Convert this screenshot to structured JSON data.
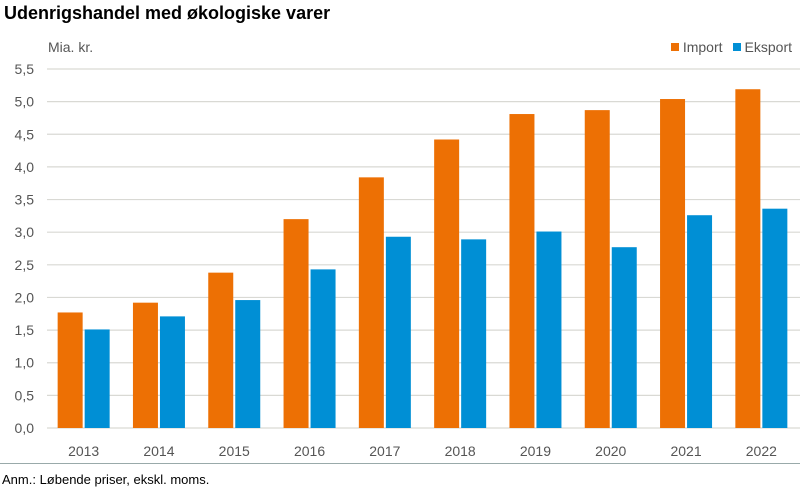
{
  "title": "Udenrigshandel med økologiske varer",
  "footnote": "Anm.: Løbende priser, ekskl. moms.",
  "chart_data": {
    "type": "bar",
    "title": "Udenrigshandel med økologiske varer",
    "ylabel": "Mia. kr.",
    "xlabel": "",
    "ylim": [
      0,
      5.5
    ],
    "yticks": [
      "0,0",
      "0,5",
      "1,0",
      "1,5",
      "2,0",
      "2,5",
      "3,0",
      "3,5",
      "4,0",
      "4,5",
      "5,0",
      "5,5"
    ],
    "grid": true,
    "legend_position": "top-right",
    "categories": [
      "2013",
      "2014",
      "2015",
      "2016",
      "2017",
      "2018",
      "2019",
      "2020",
      "2021",
      "2022"
    ],
    "series": [
      {
        "name": "Import",
        "color": "#ED7004",
        "values": [
          1.77,
          1.92,
          2.38,
          3.2,
          3.84,
          4.42,
          4.81,
          4.87,
          5.04,
          5.19
        ]
      },
      {
        "name": "Eksport",
        "color": "#008FD5",
        "values": [
          1.51,
          1.71,
          1.96,
          2.43,
          2.93,
          2.89,
          3.01,
          2.77,
          3.26,
          3.36
        ]
      }
    ]
  }
}
